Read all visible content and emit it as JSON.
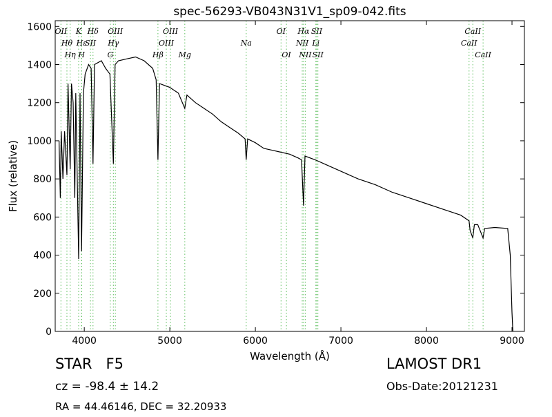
{
  "chart_data": {
    "type": "line",
    "title": "spec-56293-VB043N31V1_sp09-042.fits",
    "xlabel": "Wavelength (Å)",
    "ylabel": "Flux (relative)",
    "color": "#000000",
    "xlim": [
      3660,
      9145
    ],
    "ylim": [
      0,
      1630
    ],
    "xticks": [
      4000,
      5000,
      6000,
      7000,
      8000,
      9000
    ],
    "yticks": [
      0,
      200,
      400,
      600,
      800,
      1000,
      1200,
      1400,
      1600
    ],
    "x": [
      3705,
      3720,
      3730,
      3750,
      3770,
      3797,
      3810,
      3835,
      3850,
      3870,
      3889,
      3900,
      3934,
      3950,
      3968,
      3990,
      4010,
      4050,
      4080,
      4102,
      4120,
      4200,
      4250,
      4300,
      4340,
      4360,
      4400,
      4500,
      4600,
      4700,
      4800,
      4840,
      4861,
      4880,
      5000,
      5100,
      5175,
      5200,
      5300,
      5400,
      5500,
      5600,
      5700,
      5800,
      5880,
      5893,
      5910,
      6000,
      6100,
      6200,
      6300,
      6400,
      6500,
      6540,
      6563,
      6580,
      6700,
      6800,
      7000,
      7200,
      7400,
      7600,
      7800,
      8000,
      8200,
      8400,
      8498,
      8510,
      8542,
      8560,
      8600,
      8662,
      8680,
      8800,
      8950,
      8980,
      9000,
      9010
    ],
    "values": [
      1000,
      700,
      1050,
      800,
      1050,
      820,
      1300,
      850,
      1300,
      1200,
      700,
      1250,
      380,
      1250,
      420,
      1250,
      1350,
      1400,
      1380,
      880,
      1400,
      1420,
      1380,
      1350,
      880,
      1400,
      1420,
      1430,
      1440,
      1420,
      1380,
      1320,
      900,
      1300,
      1280,
      1250,
      1170,
      1240,
      1200,
      1170,
      1140,
      1100,
      1070,
      1040,
      1010,
      900,
      1010,
      990,
      960,
      950,
      940,
      930,
      910,
      900,
      660,
      920,
      900,
      880,
      840,
      800,
      770,
      730,
      700,
      670,
      640,
      610,
      580,
      530,
      490,
      560,
      560,
      490,
      540,
      545,
      540,
      400,
      100,
      0
    ],
    "line_color": "#5fbf5f",
    "spectral_lines": [
      {
        "label": "OII",
        "wavelength": 3727
      },
      {
        "label": "Hθ",
        "wavelength": 3797
      },
      {
        "label": "Hη",
        "wavelength": 3835
      },
      {
        "label": "K",
        "wavelength": 3934
      },
      {
        "label": "Hε",
        "wavelength": 3970
      },
      {
        "label": "H",
        "wavelength": 3968
      },
      {
        "label": "Hδ",
        "wavelength": 4102
      },
      {
        "label": "SII",
        "wavelength": 4072
      },
      {
        "label": "G",
        "wavelength": 4304
      },
      {
        "label": "OIII",
        "wavelength": 4363
      },
      {
        "label": "Hγ",
        "wavelength": 4340
      },
      {
        "label": "Hβ",
        "wavelength": 4861
      },
      {
        "label": "OIII",
        "wavelength": 5007
      },
      {
        "label": "OIII",
        "wavelength": 4959
      },
      {
        "label": "Mg",
        "wavelength": 5175
      },
      {
        "label": "OI",
        "wavelength": 6300
      },
      {
        "label": "Na",
        "wavelength": 5893
      },
      {
        "label": "OI",
        "wavelength": 6363
      },
      {
        "label": "Hα",
        "wavelength": 6563
      },
      {
        "label": "NII",
        "wavelength": 6548
      },
      {
        "label": "NII",
        "wavelength": 6583
      },
      {
        "label": "SII",
        "wavelength": 6717
      },
      {
        "label": "Li",
        "wavelength": 6707
      },
      {
        "label": "SII",
        "wavelength": 6731
      },
      {
        "label": "CaII",
        "wavelength": 8542
      },
      {
        "label": "CaII",
        "wavelength": 8498
      },
      {
        "label": "CaII",
        "wavelength": 8662
      }
    ],
    "object_class": "STAR   F5",
    "redshift": "cz = -98.4 ± 14.2",
    "coordinates": "RA = 44.46146, DEC = 32.20933",
    "survey": "LAMOST DR1",
    "obs_date": "Obs-Date:20121231"
  }
}
